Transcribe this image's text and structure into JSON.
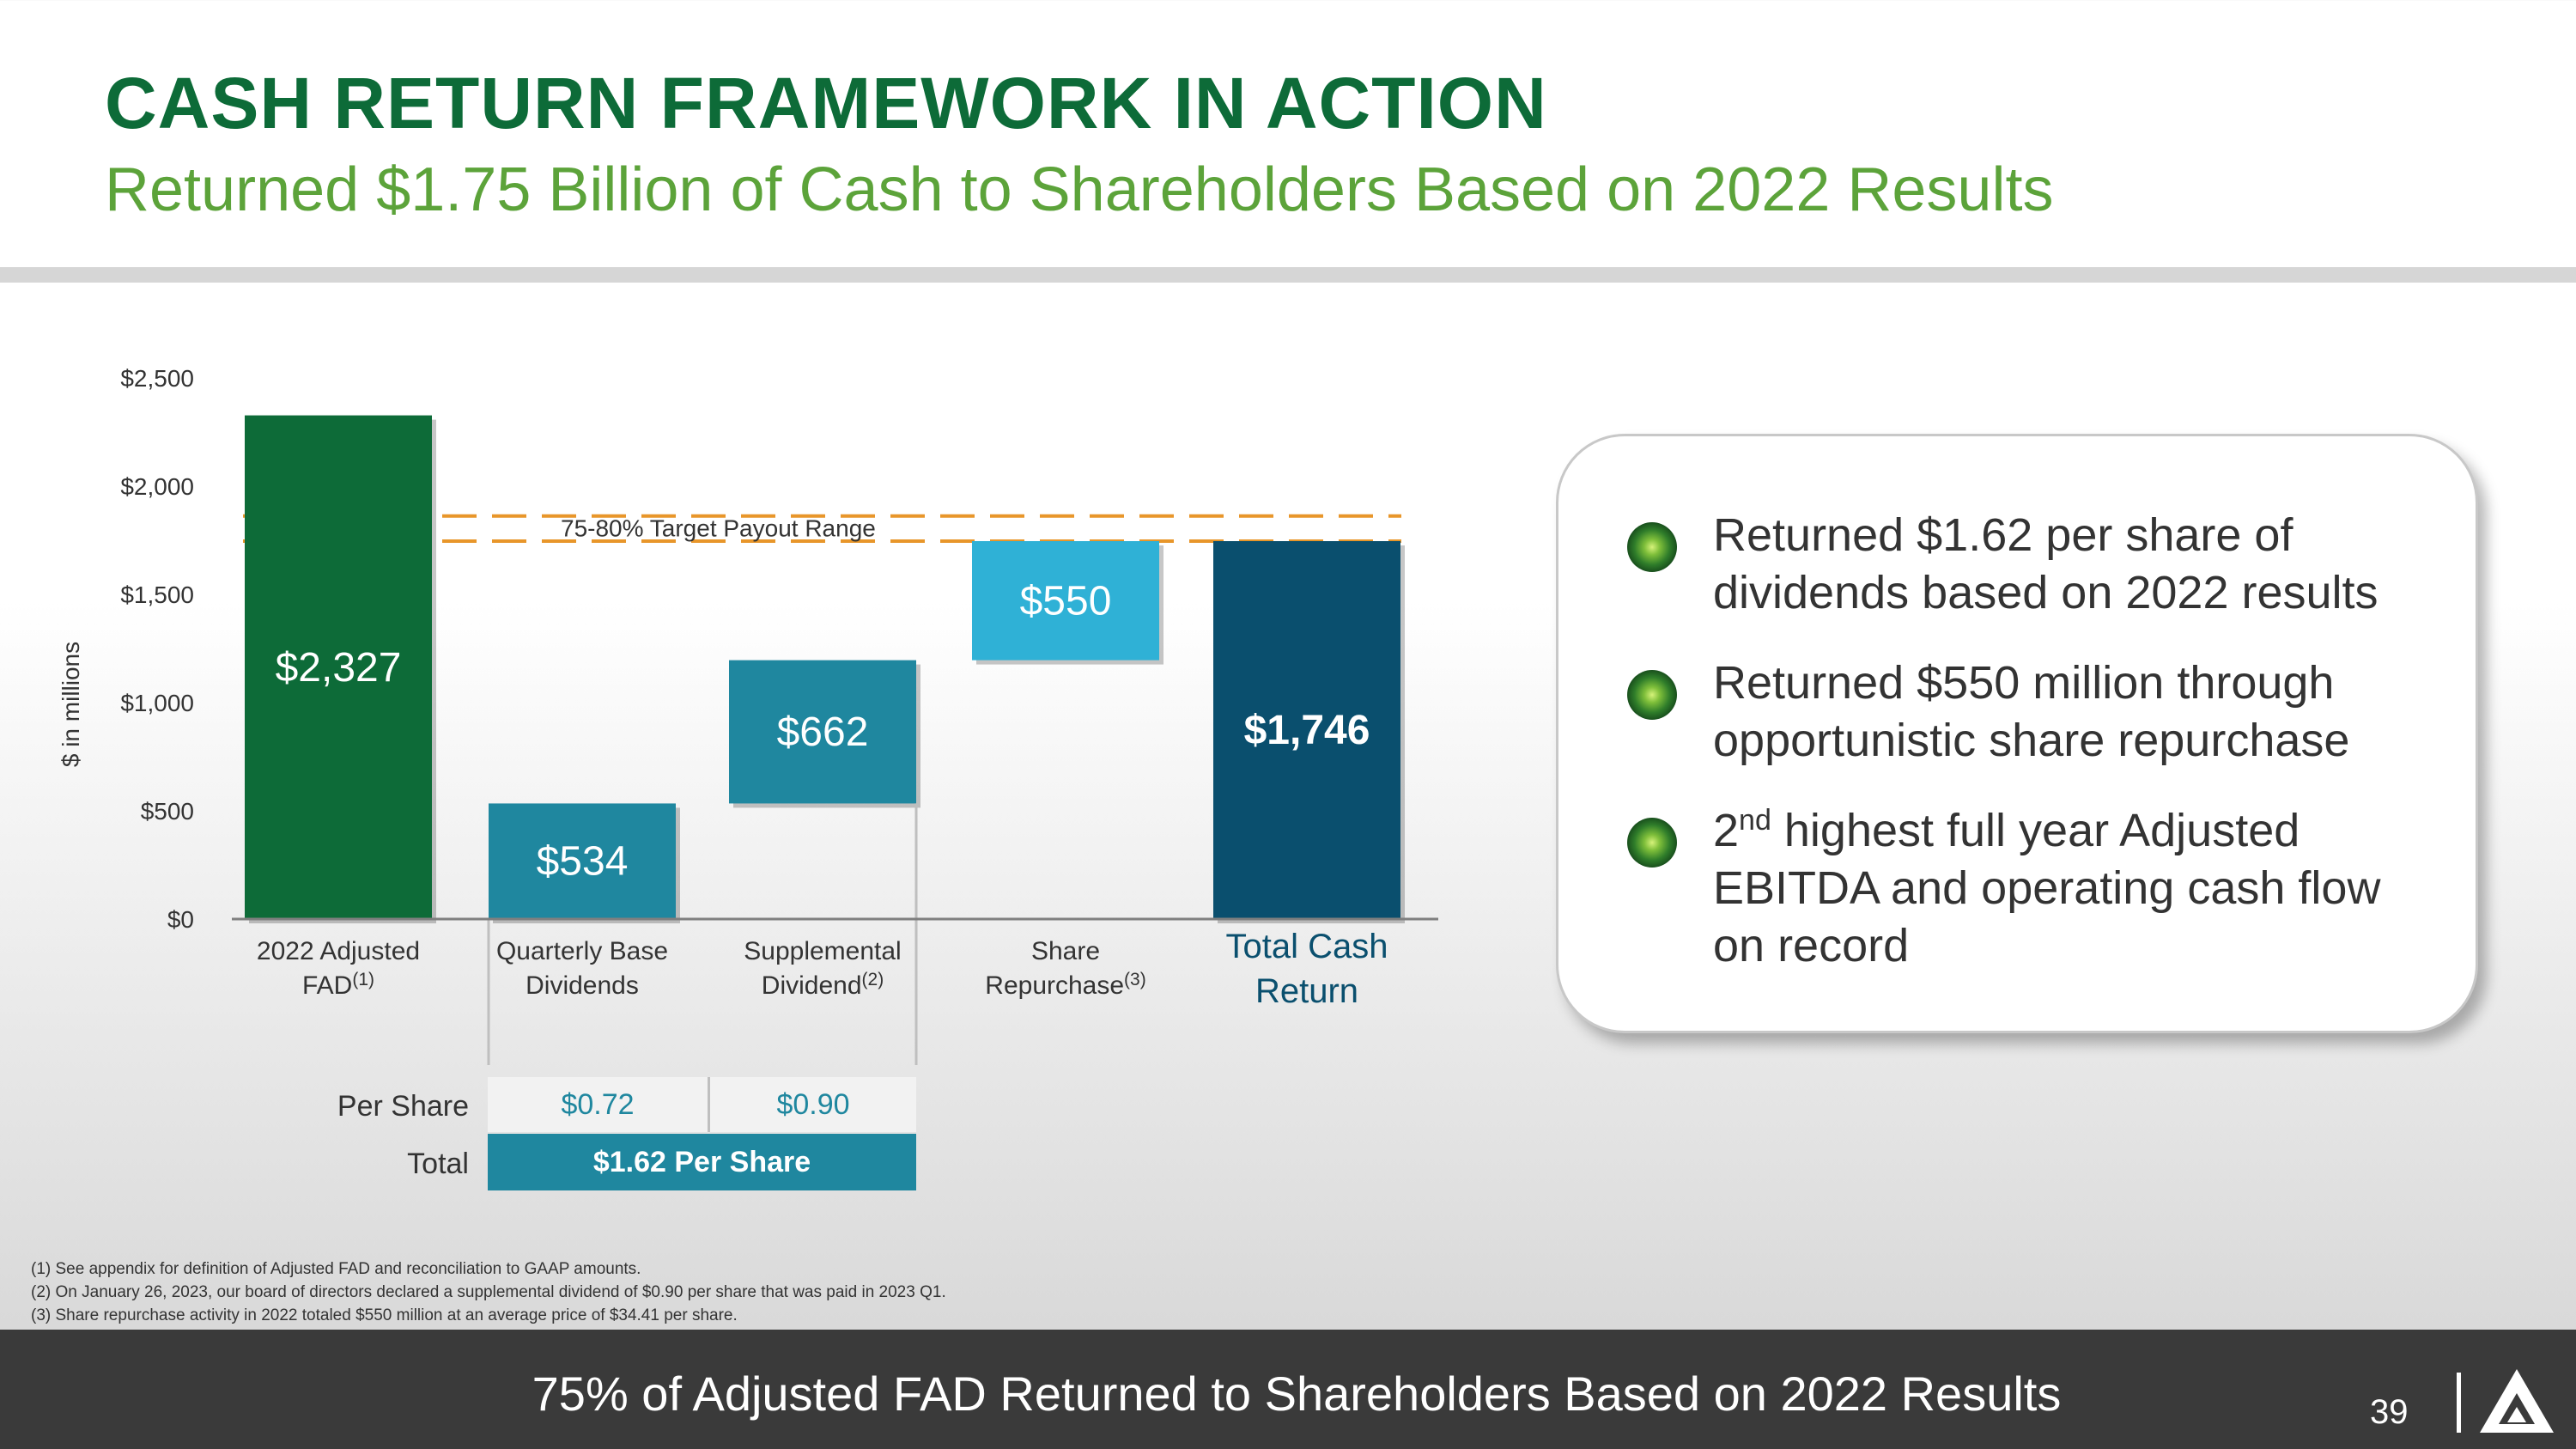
{
  "header": {
    "title": "CASH RETURN FRAMEWORK IN ACTION",
    "subtitle": "Returned $1.75 Billion of Cash to Shareholders Based on 2022 Results"
  },
  "colors": {
    "dark_green": "#0d6b38",
    "teal": "#1f879f",
    "light_teal": "#2fb1d6",
    "navy": "#0a4f6e",
    "target_line": "#e8962a"
  },
  "chart_data": {
    "type": "bar",
    "subtype": "waterfall",
    "ylabel": "$ in millions",
    "ylim": [
      0,
      2500
    ],
    "yticks": [
      "$0",
      "$500",
      "$1,000",
      "$1,500",
      "$2,000",
      "$2,500"
    ],
    "categories": [
      {
        "main": "2022   Adjusted",
        "line2": "FAD",
        "sup": "(1)"
      },
      {
        "main": "Quarterly Base",
        "line2": "Dividends",
        "sup": ""
      },
      {
        "main": "Supplemental",
        "line2": "Dividend",
        "sup": "(2)"
      },
      {
        "main": "Share",
        "line2": "Repurchase",
        "sup": "(3)"
      },
      {
        "main": "Total Cash",
        "line2": "Return",
        "sup": ""
      }
    ],
    "bars": [
      {
        "label": "$2,327",
        "start": 0,
        "end": 2327,
        "color": "#0d6b38"
      },
      {
        "label": "$534",
        "start": 0,
        "end": 534,
        "color": "#1f879f"
      },
      {
        "label": "$662",
        "start": 534,
        "end": 1196,
        "color": "#1f879f"
      },
      {
        "label": "$550",
        "start": 1196,
        "end": 1746,
        "color": "#2fb1d6"
      },
      {
        "label": "$1,746",
        "start": 0,
        "end": 1746,
        "color": "#0a4f6e"
      }
    ],
    "target_range": {
      "label": "75-80% Target Payout Range",
      "low": 1746,
      "high": 1862
    }
  },
  "per_share_table": {
    "per_share_label": "Per Share",
    "total_label": "Total",
    "quarterly": "$0.72",
    "supplemental": "$0.90",
    "total": "$1.62 Per Share"
  },
  "callout": {
    "bullets": [
      {
        "text": "Returned $1.62 per share of dividends based on 2022 results"
      },
      {
        "text": "Returned $550 million through opportunistic share repurchase"
      },
      {
        "pre": "2",
        "sup": "nd",
        "text": " highest full year Adjusted EBITDA and operating cash flow on record"
      }
    ]
  },
  "footnotes": [
    "(1) See appendix for definition of Adjusted FAD and reconciliation to GAAP amounts.",
    "(2) On January 26, 2023, our board of directors declared a supplemental dividend of $0.90 per share that was paid in 2023 Q1.",
    "(3) Share repurchase activity in 2022 totaled $550 million at an average price of $34.41 per share."
  ],
  "footer": {
    "text": "75% of Adjusted FAD Returned to Shareholders Based on 2022 Results",
    "page": "39"
  }
}
